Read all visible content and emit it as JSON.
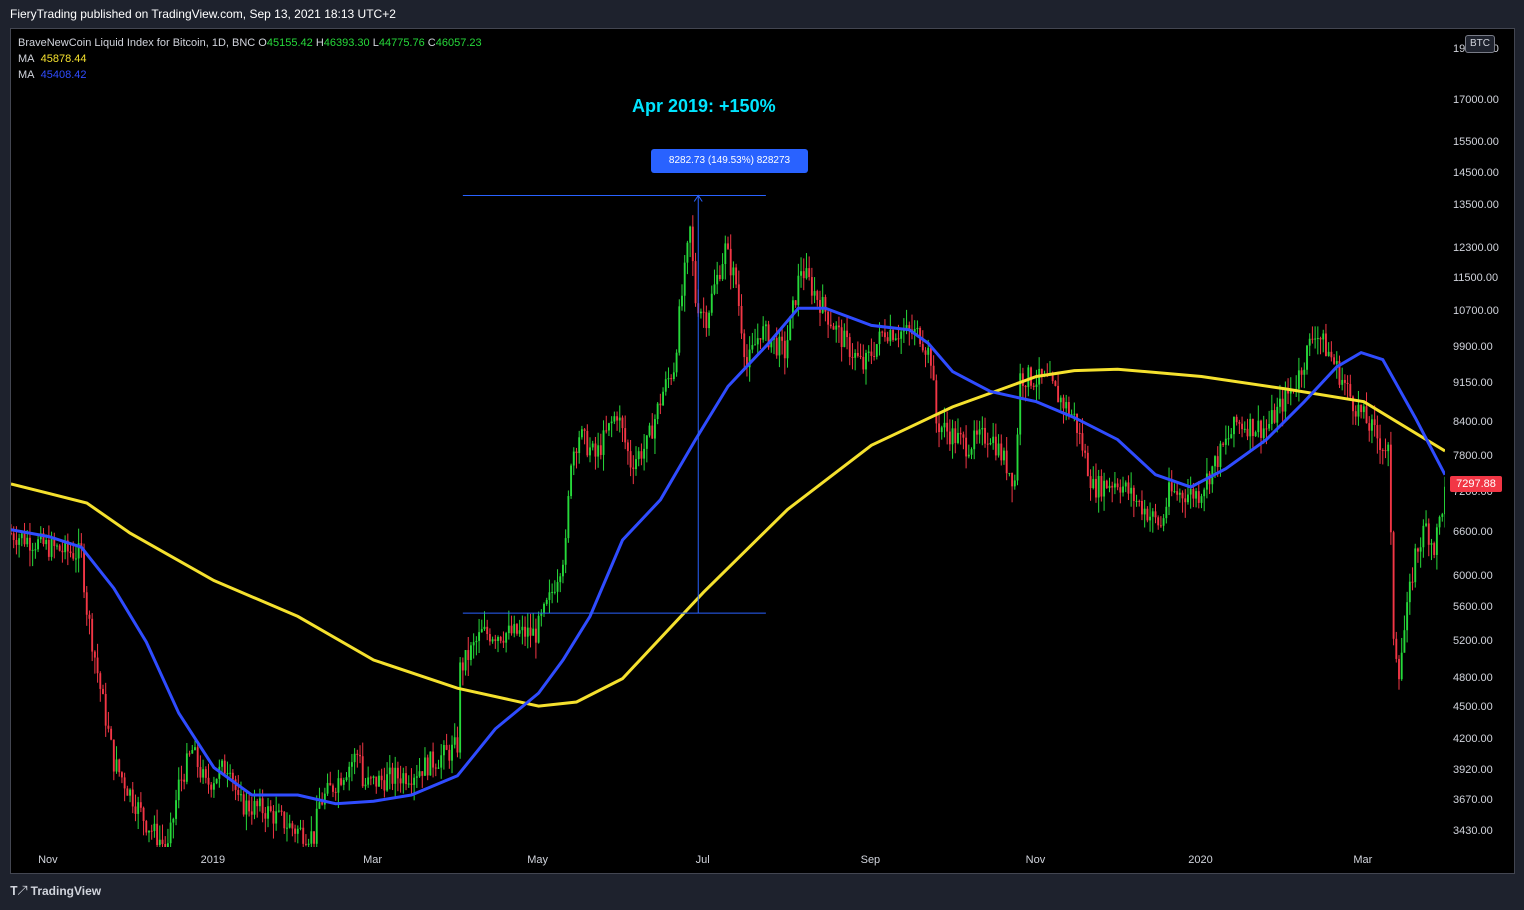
{
  "header": {
    "publisher": "FieryTrading published on TradingView.com, Sep 13, 2021 18:13 UTC+2"
  },
  "legend": {
    "symbol": "BraveNewCoin Liquid Index for Bitcoin, 1D, BNC",
    "ohlc": {
      "o_label": "O",
      "o": "45155.42",
      "h_label": "H",
      "h": "46393.30",
      "l_label": "L",
      "l": "44775.76",
      "c_label": "C",
      "c": "46057.23"
    },
    "ma1": {
      "label": "MA",
      "value": "45878.44"
    },
    "ma2": {
      "label": "MA",
      "value": "45408.42"
    }
  },
  "currency_button": "BTC",
  "last_price": "7297.88",
  "annotation": {
    "title": "Apr 2019: +150%",
    "measure": "8282.73 (149.53%) 828273"
  },
  "footer": {
    "logo": "TradingView"
  },
  "colors": {
    "up": "#26d93a",
    "down": "#f23645",
    "ma_fast": "#2f4cff",
    "ma_slow": "#f5e12e",
    "annotation": "#00e5ff",
    "measure": "#2962ff"
  },
  "chart_data": {
    "type": "candlestick",
    "y_scale": "log",
    "ylim": [
      3320,
      19900
    ],
    "xlim": [
      "2018-10-18",
      "2020-03-31"
    ],
    "yticks": [
      "19000.00",
      "17000.00",
      "15500.00",
      "14500.00",
      "13500.00",
      "12300.00",
      "11500.00",
      "10700.00",
      "9900.00",
      "9150.00",
      "8400.00",
      "7800.00",
      "7200.00",
      "6600.00",
      "6000.00",
      "5600.00",
      "5200.00",
      "4800.00",
      "4500.00",
      "4200.00",
      "3920.00",
      "3670.00",
      "3430.00"
    ],
    "xticks": [
      {
        "date": "2018-11-01",
        "label": "Nov"
      },
      {
        "date": "2019-01-01",
        "label": "2019"
      },
      {
        "date": "2019-03-01",
        "label": "Mar"
      },
      {
        "date": "2019-05-01",
        "label": "May"
      },
      {
        "date": "2019-07-01",
        "label": "Jul"
      },
      {
        "date": "2019-09-01",
        "label": "Sep"
      },
      {
        "date": "2019-11-01",
        "label": "Nov"
      },
      {
        "date": "2020-01-01",
        "label": "2020"
      },
      {
        "date": "2020-03-01",
        "label": "Mar"
      }
    ],
    "price_path": [
      [
        "2018-10-18",
        6600
      ],
      [
        "2018-11-01",
        6400
      ],
      [
        "2018-11-13",
        6300
      ],
      [
        "2018-11-15",
        5600
      ],
      [
        "2018-11-20",
        4700
      ],
      [
        "2018-11-25",
        4000
      ],
      [
        "2018-12-07",
        3500
      ],
      [
        "2018-12-15",
        3300
      ],
      [
        "2018-12-19",
        3800
      ],
      [
        "2018-12-24",
        4100
      ],
      [
        "2018-12-29",
        3800
      ],
      [
        "2019-01-07",
        4000
      ],
      [
        "2019-01-10",
        3650
      ],
      [
        "2019-01-20",
        3600
      ],
      [
        "2019-01-31",
        3450
      ],
      [
        "2019-02-07",
        3400
      ],
      [
        "2019-02-09",
        3650
      ],
      [
        "2019-02-24",
        4100
      ],
      [
        "2019-02-25",
        3800
      ],
      [
        "2019-03-05",
        3850
      ],
      [
        "2019-03-15",
        3900
      ],
      [
        "2019-03-30",
        4100
      ],
      [
        "2019-04-01",
        4150
      ],
      [
        "2019-04-02",
        4900
      ],
      [
        "2019-04-10",
        5300
      ],
      [
        "2019-04-20",
        5300
      ],
      [
        "2019-04-30",
        5300
      ],
      [
        "2019-05-05",
        5700
      ],
      [
        "2019-05-11",
        6400
      ],
      [
        "2019-05-13",
        7800
      ],
      [
        "2019-05-16",
        8200
      ],
      [
        "2019-05-22",
        7800
      ],
      [
        "2019-05-30",
        8600
      ],
      [
        "2019-06-04",
        7700
      ],
      [
        "2019-06-10",
        8000
      ],
      [
        "2019-06-16",
        9000
      ],
      [
        "2019-06-20",
        9500
      ],
      [
        "2019-06-22",
        10600
      ],
      [
        "2019-06-26",
        12800
      ],
      [
        "2019-06-28",
        11000
      ],
      [
        "2019-07-02",
        10600
      ],
      [
        "2019-07-09",
        12300
      ],
      [
        "2019-07-13",
        11400
      ],
      [
        "2019-07-17",
        9500
      ],
      [
        "2019-07-22",
        10300
      ],
      [
        "2019-07-31",
        9800
      ],
      [
        "2019-08-06",
        11800
      ],
      [
        "2019-08-10",
        11300
      ],
      [
        "2019-08-20",
        10200
      ],
      [
        "2019-08-29",
        9500
      ],
      [
        "2019-09-06",
        10300
      ],
      [
        "2019-09-19",
        10200
      ],
      [
        "2019-09-23",
        9700
      ],
      [
        "2019-09-25",
        8400
      ],
      [
        "2019-10-06",
        8000
      ],
      [
        "2019-10-15",
        8200
      ],
      [
        "2019-10-24",
        7400
      ],
      [
        "2019-10-26",
        9300
      ],
      [
        "2019-11-05",
        9200
      ],
      [
        "2019-11-15",
        8500
      ],
      [
        "2019-11-22",
        7300
      ],
      [
        "2019-12-01",
        7400
      ],
      [
        "2019-12-17",
        6700
      ],
      [
        "2019-12-20",
        7200
      ],
      [
        "2019-12-31",
        7200
      ],
      [
        "2020-01-14",
        8400
      ],
      [
        "2020-01-25",
        8300
      ],
      [
        "2020-02-05",
        9200
      ],
      [
        "2020-02-12",
        10300
      ],
      [
        "2020-02-18",
        9700
      ],
      [
        "2020-02-26",
        8800
      ],
      [
        "2020-03-08",
        8000
      ],
      [
        "2020-03-10",
        7900
      ],
      [
        "2020-03-12",
        5300
      ],
      [
        "2020-03-14",
        4900
      ],
      [
        "2020-03-20",
        6300
      ],
      [
        "2020-03-24",
        6700
      ],
      [
        "2020-03-27",
        6400
      ],
      [
        "2020-03-31",
        7200
      ]
    ],
    "ma_fast": [
      [
        "2018-10-18",
        6650
      ],
      [
        "2018-11-01",
        6550
      ],
      [
        "2018-11-13",
        6400
      ],
      [
        "2018-11-25",
        5850
      ],
      [
        "2018-12-07",
        5200
      ],
      [
        "2018-12-19",
        4450
      ],
      [
        "2019-01-01",
        3950
      ],
      [
        "2019-01-15",
        3720
      ],
      [
        "2019-02-01",
        3720
      ],
      [
        "2019-02-15",
        3650
      ],
      [
        "2019-03-01",
        3670
      ],
      [
        "2019-03-15",
        3720
      ],
      [
        "2019-04-01",
        3880
      ],
      [
        "2019-04-15",
        4300
      ],
      [
        "2019-05-01",
        4650
      ],
      [
        "2019-05-10",
        5000
      ],
      [
        "2019-05-20",
        5500
      ],
      [
        "2019-06-01",
        6500
      ],
      [
        "2019-06-15",
        7100
      ],
      [
        "2019-06-28",
        8100
      ],
      [
        "2019-07-10",
        9100
      ],
      [
        "2019-07-25",
        10000
      ],
      [
        "2019-08-05",
        10800
      ],
      [
        "2019-08-15",
        10800
      ],
      [
        "2019-09-01",
        10400
      ],
      [
        "2019-09-15",
        10300
      ],
      [
        "2019-09-22",
        10000
      ],
      [
        "2019-10-01",
        9400
      ],
      [
        "2019-10-15",
        9000
      ],
      [
        "2019-11-01",
        8800
      ],
      [
        "2019-11-15",
        8500
      ],
      [
        "2019-12-01",
        8100
      ],
      [
        "2019-12-15",
        7500
      ],
      [
        "2019-12-28",
        7300
      ],
      [
        "2020-01-10",
        7600
      ],
      [
        "2020-01-25",
        8100
      ],
      [
        "2020-02-08",
        8800
      ],
      [
        "2020-02-20",
        9500
      ],
      [
        "2020-02-29",
        9800
      ],
      [
        "2020-03-08",
        9650
      ],
      [
        "2020-03-20",
        8500
      ],
      [
        "2020-03-31",
        7500
      ]
    ],
    "ma_slow": [
      [
        "2018-10-18",
        7350
      ],
      [
        "2018-11-01",
        7200
      ],
      [
        "2018-11-15",
        7050
      ],
      [
        "2018-12-01",
        6600
      ],
      [
        "2019-01-01",
        5950
      ],
      [
        "2019-02-01",
        5500
      ],
      [
        "2019-03-01",
        5000
      ],
      [
        "2019-04-01",
        4700
      ],
      [
        "2019-05-01",
        4520
      ],
      [
        "2019-05-15",
        4560
      ],
      [
        "2019-06-01",
        4800
      ],
      [
        "2019-07-01",
        5800
      ],
      [
        "2019-08-01",
        6950
      ],
      [
        "2019-09-01",
        8000
      ],
      [
        "2019-10-01",
        8700
      ],
      [
        "2019-11-01",
        9300
      ],
      [
        "2019-11-15",
        9420
      ],
      [
        "2019-12-01",
        9450
      ],
      [
        "2020-01-01",
        9300
      ],
      [
        "2020-02-01",
        9050
      ],
      [
        "2020-03-01",
        8800
      ],
      [
        "2020-03-31",
        7900
      ]
    ],
    "measure": {
      "from_date": "2019-04-03",
      "to_date": "2019-07-24",
      "x_date": "2019-06-29",
      "low": 5540,
      "high": 13822,
      "change": 8282.73,
      "percent": 149.53
    }
  }
}
